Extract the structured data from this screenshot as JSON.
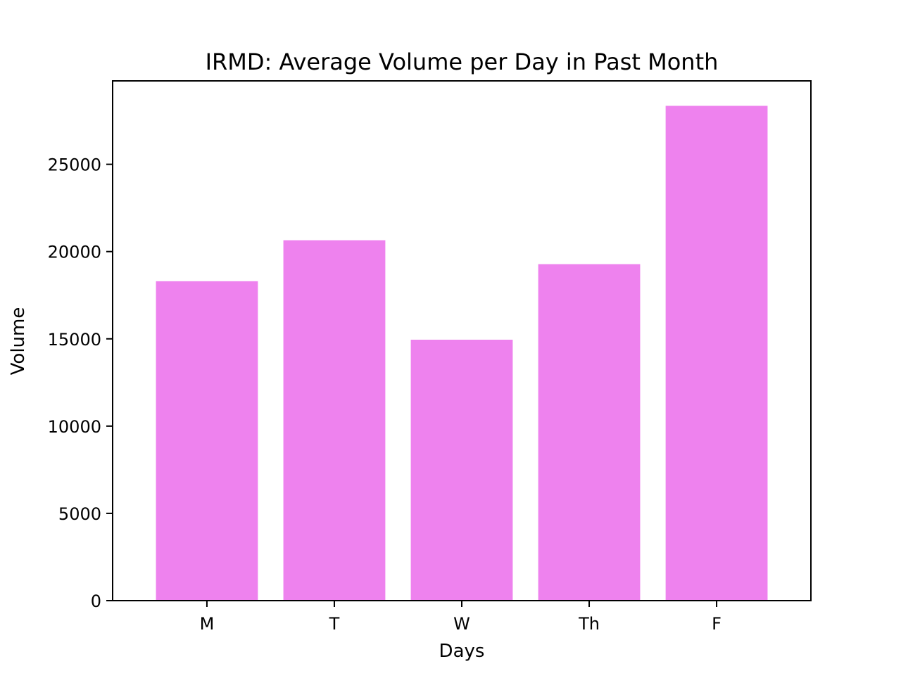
{
  "chart_data": {
    "type": "bar",
    "title": "IRMD: Average Volume per Day in Past Month",
    "xlabel": "Days",
    "ylabel": "Volume",
    "categories": [
      "M",
      "T",
      "W",
      "Th",
      "F"
    ],
    "values": [
      18300,
      20650,
      14950,
      19280,
      28350
    ],
    "ylim": [
      0,
      29780
    ],
    "yticks": [
      0,
      5000,
      10000,
      15000,
      20000,
      25000
    ],
    "grid": false,
    "bar_color": "#ee82ee"
  }
}
